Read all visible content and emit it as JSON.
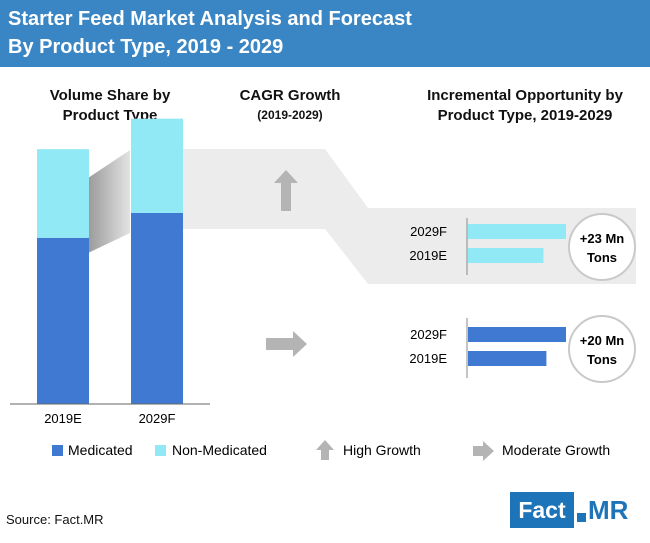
{
  "header": {
    "title_line1": "Starter Feed Market Analysis and Forecast",
    "title_line2": "By Product Type, 2019 - 2029"
  },
  "sections": {
    "volume_line1": "Volume Share by",
    "volume_line2": "Product Type",
    "cagr_title": "CAGR Growth",
    "cagr_sub": "(2019-2029)",
    "incr_line1": "Incremental Opportunity by",
    "incr_line2": "Product Type, 2019-2029"
  },
  "colors": {
    "medicated": "#3f79d1",
    "non_medicated": "#91e9f5",
    "header": "#3a86c4",
    "band": "#ececec",
    "arrow": "#b4b4b4"
  },
  "chart_data": [
    {
      "type": "bar",
      "stacked": true,
      "categories": [
        "2019E",
        "2029F"
      ],
      "series": [
        {
          "name": "Medicated",
          "values": [
            60,
            69
          ]
        },
        {
          "name": "Non-Medicated",
          "values": [
            32,
            34
          ]
        }
      ],
      "ylim": [
        0,
        100
      ]
    },
    {
      "type": "bar",
      "orientation": "horizontal",
      "segment": "Non-Medicated",
      "growth": "High Growth",
      "categories": [
        "2029F",
        "2019E"
      ],
      "values": [
        100,
        77
      ],
      "annotation": [
        "+23 Mn",
        "Tons"
      ]
    },
    {
      "type": "bar",
      "orientation": "horizontal",
      "segment": "Medicated",
      "growth": "Moderate Growth",
      "categories": [
        "2029F",
        "2019E"
      ],
      "values": [
        100,
        80
      ],
      "annotation": [
        "+20 Mn",
        "Tons"
      ]
    }
  ],
  "legend": {
    "medicated": "Medicated",
    "non_medicated": "Non-Medicated",
    "high_growth": "High Growth",
    "moderate_growth": "Moderate Growth"
  },
  "footer": {
    "source": "Source: Fact.MR",
    "logo_left": "Fact",
    "logo_right": "MR"
  }
}
